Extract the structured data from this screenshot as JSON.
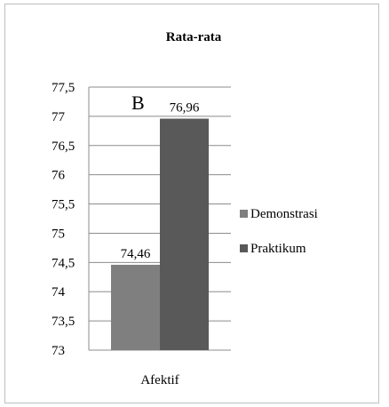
{
  "chart_data": {
    "type": "bar",
    "title": "Rata-rata",
    "categories": [
      "Afektif"
    ],
    "series": [
      {
        "name": "Demonstrasi",
        "values": [
          74.46
        ],
        "color": "#7f7f7f"
      },
      {
        "name": "Praktikum",
        "values": [
          76.96
        ],
        "color": "#595959"
      }
    ],
    "data_labels": [
      "74,46",
      "76,96"
    ],
    "ylim": [
      73,
      77.5
    ],
    "yticks": [
      73,
      73.5,
      74,
      74.5,
      75,
      75.5,
      76,
      76.5,
      77,
      77.5
    ],
    "ytick_labels": [
      "73",
      "73,5",
      "74",
      "74,5",
      "75",
      "75,5",
      "76",
      "76,5",
      "77",
      "77,5"
    ],
    "xlabel": "",
    "ylabel": "",
    "grid": true,
    "legend_position": "right",
    "annotation": "B"
  }
}
